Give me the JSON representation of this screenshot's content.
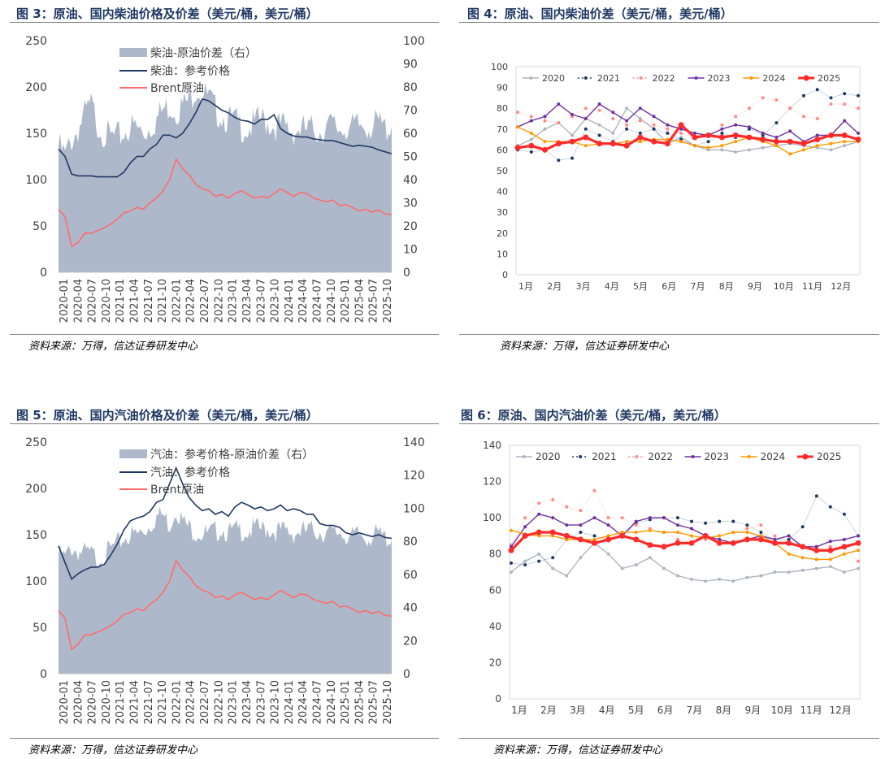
{
  "figures": [
    {
      "title": "图 3：原油、国内柴油价格及价差（美元/桶，美元/桶）",
      "source": "资料来源：万得，信达证券研发中心"
    },
    {
      "title": "图 4：原油、国内柴油价差（美元/桶，美元/桶）",
      "source": "资料来源：万得，信达证券研发中心"
    },
    {
      "title": "图 5：原油、国内汽油价格及价差（美元/桶，美元/桶）",
      "source": "资料来源：万得，信达证券研发中心"
    },
    {
      "title": "图 6：原油、国内汽油价差（美元/桶，美元/桶）",
      "source": "资料来源：万得，信达证券研发中心"
    }
  ],
  "colors": {
    "area": "#adb9ca",
    "product": "#1f3864",
    "brent": "#ff6b6b",
    "y2020": "#aeb6c0",
    "y2021": "#1f3864",
    "y2022": "#ff8a8a",
    "y2023": "#7030a0",
    "y2024": "#ff9900",
    "y2025": "#ff2a2a"
  },
  "chart_data": [
    {
      "type": "area+line",
      "x_ticks": [
        "2020-01",
        "2020-04",
        "2020-07",
        "2020-10",
        "2021-01",
        "2021-04",
        "2021-07",
        "2021-10",
        "2022-01",
        "2022-04",
        "2022-07",
        "2022-10",
        "2023-01",
        "2023-04",
        "2023-07",
        "2023-10",
        "2024-01",
        "2024-04",
        "2024-07",
        "2024-10",
        "2025-01",
        "2025-04",
        "2025-07",
        "2025-10"
      ],
      "y_left": {
        "min": 0,
        "max": 250,
        "ticks": [
          "0",
          "50",
          "100",
          "150",
          "200",
          "250"
        ]
      },
      "y_right": {
        "min": 0,
        "max": 100,
        "ticks": [
          "0",
          "10",
          "20",
          "30",
          "40",
          "50",
          "60",
          "70",
          "80",
          "90",
          "100"
        ]
      },
      "legend": [
        "柴油-原油价差（右）",
        "柴油：参考价格",
        "Brent原油"
      ],
      "series": [
        {
          "name": "柴油-原油价差（右）",
          "axis": "right",
          "type": "area",
          "values": [
            55,
            50,
            57,
            62,
            68,
            72,
            64,
            60,
            58,
            58,
            60,
            63,
            62,
            60,
            63,
            66,
            70,
            72,
            70,
            72,
            74,
            80,
            78,
            75,
            70,
            68,
            66,
            65,
            63,
            62,
            64,
            66,
            65,
            63,
            63,
            62,
            61,
            62,
            61,
            62,
            61,
            63,
            63,
            62,
            63,
            62,
            63,
            64,
            63,
            64,
            62,
            64
          ]
        },
        {
          "name": "柴油：参考价格",
          "axis": "left",
          "type": "line",
          "values": [
            133,
            125,
            106,
            104,
            104,
            104,
            103,
            103,
            103,
            103,
            108,
            118,
            125,
            125,
            133,
            138,
            148,
            148,
            145,
            150,
            160,
            172,
            187,
            185,
            180,
            175,
            172,
            167,
            164,
            163,
            160,
            165,
            165,
            170,
            155,
            150,
            147,
            146,
            146,
            144,
            143,
            142,
            142,
            140,
            138,
            136,
            137,
            136,
            135,
            132,
            130,
            128
          ]
        },
        {
          "name": "Brent原油",
          "axis": "left",
          "type": "line",
          "values": [
            68,
            60,
            28,
            32,
            42,
            42,
            45,
            48,
            52,
            57,
            64,
            66,
            70,
            68,
            75,
            80,
            88,
            100,
            122,
            112,
            105,
            95,
            90,
            88,
            82,
            84,
            80,
            85,
            88,
            84,
            80,
            82,
            80,
            85,
            90,
            86,
            82,
            86,
            85,
            80,
            78,
            76,
            78,
            72,
            73,
            70,
            66,
            68,
            65,
            67,
            63,
            62
          ]
        }
      ]
    },
    {
      "type": "line",
      "x_ticks": [
        "1月",
        "2月",
        "3月",
        "4月",
        "5月",
        "6月",
        "7月",
        "8月",
        "9月",
        "10月",
        "11月",
        "12月"
      ],
      "y": {
        "min": 0,
        "max": 100,
        "ticks": [
          "0",
          "10",
          "20",
          "30",
          "40",
          "50",
          "60",
          "70",
          "80",
          "90",
          "100"
        ]
      },
      "legend": [
        "2020",
        "2021",
        "2022",
        "2023",
        "2024",
        "2025"
      ],
      "series": [
        {
          "name": "2020",
          "values": [
            62,
            65,
            70,
            73,
            67,
            75,
            72,
            68,
            80,
            75,
            70,
            63,
            66,
            62,
            60,
            60,
            59,
            60,
            61,
            62,
            63,
            62,
            61,
            60,
            62,
            64
          ]
        },
        {
          "name": "2021",
          "values": [
            60,
            59,
            60,
            55,
            56,
            70,
            67,
            64,
            70,
            68,
            70,
            68,
            65,
            62,
            64,
            68,
            66,
            70,
            67,
            73,
            80,
            86,
            89,
            85,
            87,
            86
          ]
        },
        {
          "name": "2022",
          "values": [
            78,
            76,
            74,
            73,
            76,
            80,
            79,
            75,
            72,
            74,
            72,
            70,
            68,
            66,
            67,
            72,
            76,
            80,
            85,
            84,
            80,
            76,
            75,
            82,
            82,
            80
          ]
        },
        {
          "name": "2023",
          "values": [
            71,
            74,
            76,
            82,
            77,
            75,
            82,
            78,
            74,
            80,
            76,
            72,
            70,
            68,
            67,
            70,
            72,
            71,
            68,
            66,
            69,
            64,
            67,
            67,
            74,
            68
          ]
        },
        {
          "name": "2024",
          "values": [
            71,
            68,
            64,
            64,
            64,
            62,
            63,
            63,
            64,
            64,
            65,
            65,
            64,
            62,
            61,
            62,
            64,
            66,
            64,
            62,
            58,
            60,
            62,
            63,
            64,
            64
          ]
        },
        {
          "name": "2025",
          "values": [
            61,
            62,
            60,
            63,
            64,
            66,
            63,
            63,
            62,
            66,
            64,
            63,
            72,
            66,
            67,
            66,
            67,
            66,
            65,
            64,
            64,
            63,
            65,
            67,
            67,
            65
          ]
        }
      ]
    },
    {
      "type": "area+line",
      "x_ticks": [
        "2020-01",
        "2020-04",
        "2020-07",
        "2020-10",
        "2021-01",
        "2021-04",
        "2021-07",
        "2021-10",
        "2022-01",
        "2022-04",
        "2022-07",
        "2022-10",
        "2023-01",
        "2023-04",
        "2023-07",
        "2023-10",
        "2024-01",
        "2024-04",
        "2024-07",
        "2024-10",
        "2025-01",
        "2025-04",
        "2025-07",
        "2025-10"
      ],
      "y_left": {
        "min": 0,
        "max": 250,
        "ticks": [
          "0",
          "50",
          "100",
          "150",
          "200",
          "250"
        ]
      },
      "y_right": {
        "min": 0,
        "max": 140,
        "ticks": [
          "0",
          "20",
          "40",
          "60",
          "80",
          "100",
          "120",
          "140"
        ]
      },
      "legend": [
        "汽油：参考价格-原油价差（右）",
        "汽油：参考价格",
        "Brent原油"
      ],
      "series": [
        {
          "name": "汽油：参考价格-原油价差（右）",
          "axis": "right",
          "type": "area",
          "values": [
            72,
            70,
            76,
            74,
            73,
            72,
            70,
            72,
            75,
            78,
            82,
            84,
            84,
            86,
            90,
            95,
            96,
            90,
            100,
            92,
            88,
            86,
            85,
            84,
            86,
            88,
            85,
            86,
            87,
            86,
            88,
            87,
            88,
            86,
            86,
            86,
            85,
            86,
            86,
            87,
            86,
            85,
            84,
            86,
            84,
            82,
            84,
            83,
            83,
            84,
            82,
            82
          ]
        },
        {
          "name": "汽油：参考价格",
          "axis": "left",
          "type": "line",
          "values": [
            138,
            120,
            102,
            108,
            112,
            115,
            115,
            118,
            128,
            140,
            155,
            165,
            168,
            170,
            175,
            185,
            188,
            205,
            222,
            205,
            190,
            182,
            176,
            178,
            172,
            175,
            170,
            180,
            185,
            182,
            178,
            180,
            176,
            178,
            182,
            176,
            178,
            176,
            172,
            172,
            162,
            160,
            160,
            158,
            152,
            150,
            152,
            150,
            148,
            150,
            147,
            146
          ]
        },
        {
          "name": "Brent原油",
          "axis": "left",
          "type": "line",
          "values": [
            68,
            60,
            26,
            32,
            42,
            42,
            45,
            48,
            52,
            57,
            64,
            66,
            70,
            68,
            75,
            80,
            88,
            100,
            122,
            112,
            105,
            95,
            90,
            88,
            82,
            84,
            80,
            85,
            88,
            84,
            80,
            82,
            80,
            85,
            90,
            86,
            82,
            86,
            85,
            80,
            78,
            76,
            78,
            72,
            73,
            70,
            66,
            68,
            65,
            67,
            63,
            62
          ]
        }
      ]
    },
    {
      "type": "line",
      "x_ticks": [
        "1月",
        "2月",
        "3月",
        "4月",
        "5月",
        "6月",
        "7月",
        "8月",
        "9月",
        "10月",
        "11月",
        "12月"
      ],
      "y": {
        "min": 0,
        "max": 140,
        "ticks": [
          "0",
          "20",
          "40",
          "60",
          "80",
          "100",
          "120",
          "140"
        ]
      },
      "legend": [
        "2020",
        "2021",
        "2022",
        "2023",
        "2024",
        "2025"
      ],
      "series": [
        {
          "name": "2020",
          "values": [
            70,
            76,
            80,
            72,
            68,
            78,
            86,
            80,
            72,
            74,
            78,
            72,
            68,
            66,
            65,
            66,
            65,
            67,
            68,
            70,
            70,
            71,
            72,
            73,
            70,
            72
          ]
        },
        {
          "name": "2021",
          "values": [
            75,
            74,
            76,
            78,
            88,
            92,
            90,
            88,
            90,
            97,
            99,
            100,
            100,
            98,
            97,
            98,
            98,
            96,
            92,
            88,
            88,
            95,
            112,
            106,
            102,
            90
          ]
        },
        {
          "name": "2022",
          "values": [
            85,
            100,
            108,
            110,
            106,
            104,
            115,
            100,
            100,
            96,
            94,
            92,
            88,
            86,
            88,
            90,
            92,
            94,
            96,
            90,
            86,
            84,
            82,
            84,
            84,
            76
          ]
        },
        {
          "name": "2023",
          "values": [
            84,
            95,
            102,
            100,
            96,
            96,
            100,
            96,
            90,
            98,
            100,
            100,
            96,
            94,
            90,
            88,
            86,
            88,
            90,
            88,
            90,
            84,
            84,
            87,
            88,
            90
          ]
        },
        {
          "name": "2024",
          "values": [
            93,
            91,
            90,
            90,
            88,
            88,
            88,
            90,
            92,
            92,
            93,
            92,
            92,
            90,
            89,
            90,
            92,
            92,
            90,
            86,
            80,
            78,
            77,
            77,
            80,
            82
          ]
        },
        {
          "name": "2025",
          "values": [
            82,
            90,
            92,
            92,
            90,
            88,
            86,
            88,
            90,
            88,
            85,
            84,
            86,
            86,
            90,
            86,
            86,
            88,
            88,
            86,
            86,
            84,
            82,
            82,
            84,
            86
          ]
        }
      ]
    }
  ]
}
